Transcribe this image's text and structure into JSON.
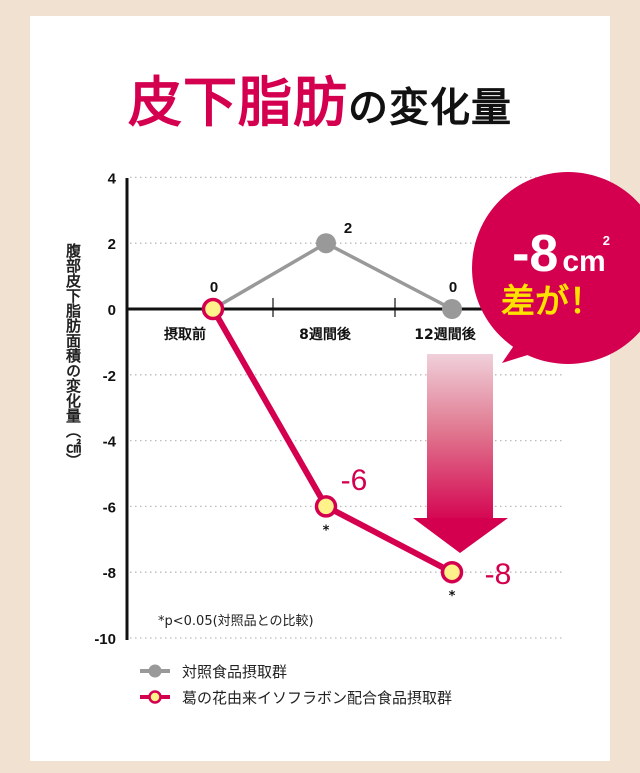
{
  "colors": {
    "background": "#f0e1d0",
    "card": "#ffffff",
    "accent": "#d4004f",
    "control": "#999999",
    "marker_fill": "#fff28a",
    "callout_text": "#ffe100"
  },
  "title": {
    "main": "皮下脂肪",
    "suffix": "の変化量"
  },
  "y_axis": {
    "label": "腹部皮下脂肪面積の変化量（㎠）"
  },
  "callout": {
    "value": "-8",
    "unit": "cm",
    "unit_sup": "2",
    "text": "差が！"
  },
  "footnote": "*p<0.05(対照品との比較)",
  "legend": [
    {
      "label": "対照食品摂取群"
    },
    {
      "label": "葛の花由来イソフラボン配合食品摂取群"
    }
  ],
  "chart_data": {
    "type": "line",
    "title": "皮下脂肪の変化量",
    "xlabel": "",
    "ylabel": "腹部皮下脂肪面積の変化量（㎠）",
    "categories": [
      "摂取前",
      "8週間後",
      "12週間後"
    ],
    "yticks": [
      4,
      2,
      0,
      -2,
      -4,
      -6,
      -8,
      -10
    ],
    "ylim": [
      -10,
      4
    ],
    "grid": "dotted horizontal",
    "legend_position": "bottom-left",
    "series": [
      {
        "name": "対照食品摂取群",
        "values": [
          0,
          2,
          0
        ],
        "labels": [
          "0",
          "2",
          "0"
        ],
        "significance": [
          "",
          "",
          ""
        ]
      },
      {
        "name": "葛の花由来イソフラボン配合食品摂取群",
        "values": [
          0,
          -6,
          -8
        ],
        "labels": [
          "",
          "-6",
          "-8"
        ],
        "significance": [
          "",
          "*",
          "*"
        ]
      }
    ],
    "annotations": [
      {
        "text": "-8㎠ 差が！",
        "type": "callout"
      },
      {
        "text": "*p<0.05(対照品との比較)",
        "type": "footnote"
      }
    ]
  }
}
